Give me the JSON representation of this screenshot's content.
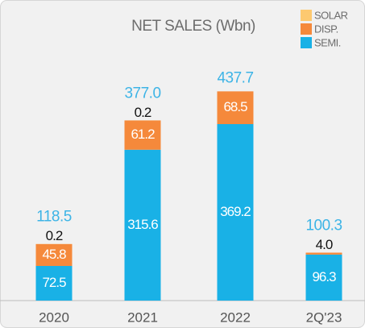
{
  "chart_data": {
    "type": "stacked_bar",
    "title": "NET SALES  (Wbn)",
    "categories": [
      "2020",
      "2021",
      "2022",
      "2Q'23"
    ],
    "series": [
      {
        "name": "SEMI.",
        "color": "#19b1e6",
        "values": [
          72.5,
          315.6,
          369.2,
          96.3
        ]
      },
      {
        "name": "DISP.",
        "color": "#f5893b",
        "values": [
          45.8,
          61.2,
          68.5,
          4.0
        ],
        "value_labels": [
          "45.8",
          "61.2",
          "68.5",
          "4.0"
        ]
      },
      {
        "name": "SOLAR",
        "color": "#fdc970",
        "values": [
          0.2,
          0.2,
          null,
          null
        ]
      }
    ],
    "totals": [
      118.5,
      377.0,
      437.7,
      100.3
    ],
    "total_labels": [
      "118.5",
      "377.0",
      "437.7",
      "100.3"
    ],
    "legend": "top-right"
  }
}
